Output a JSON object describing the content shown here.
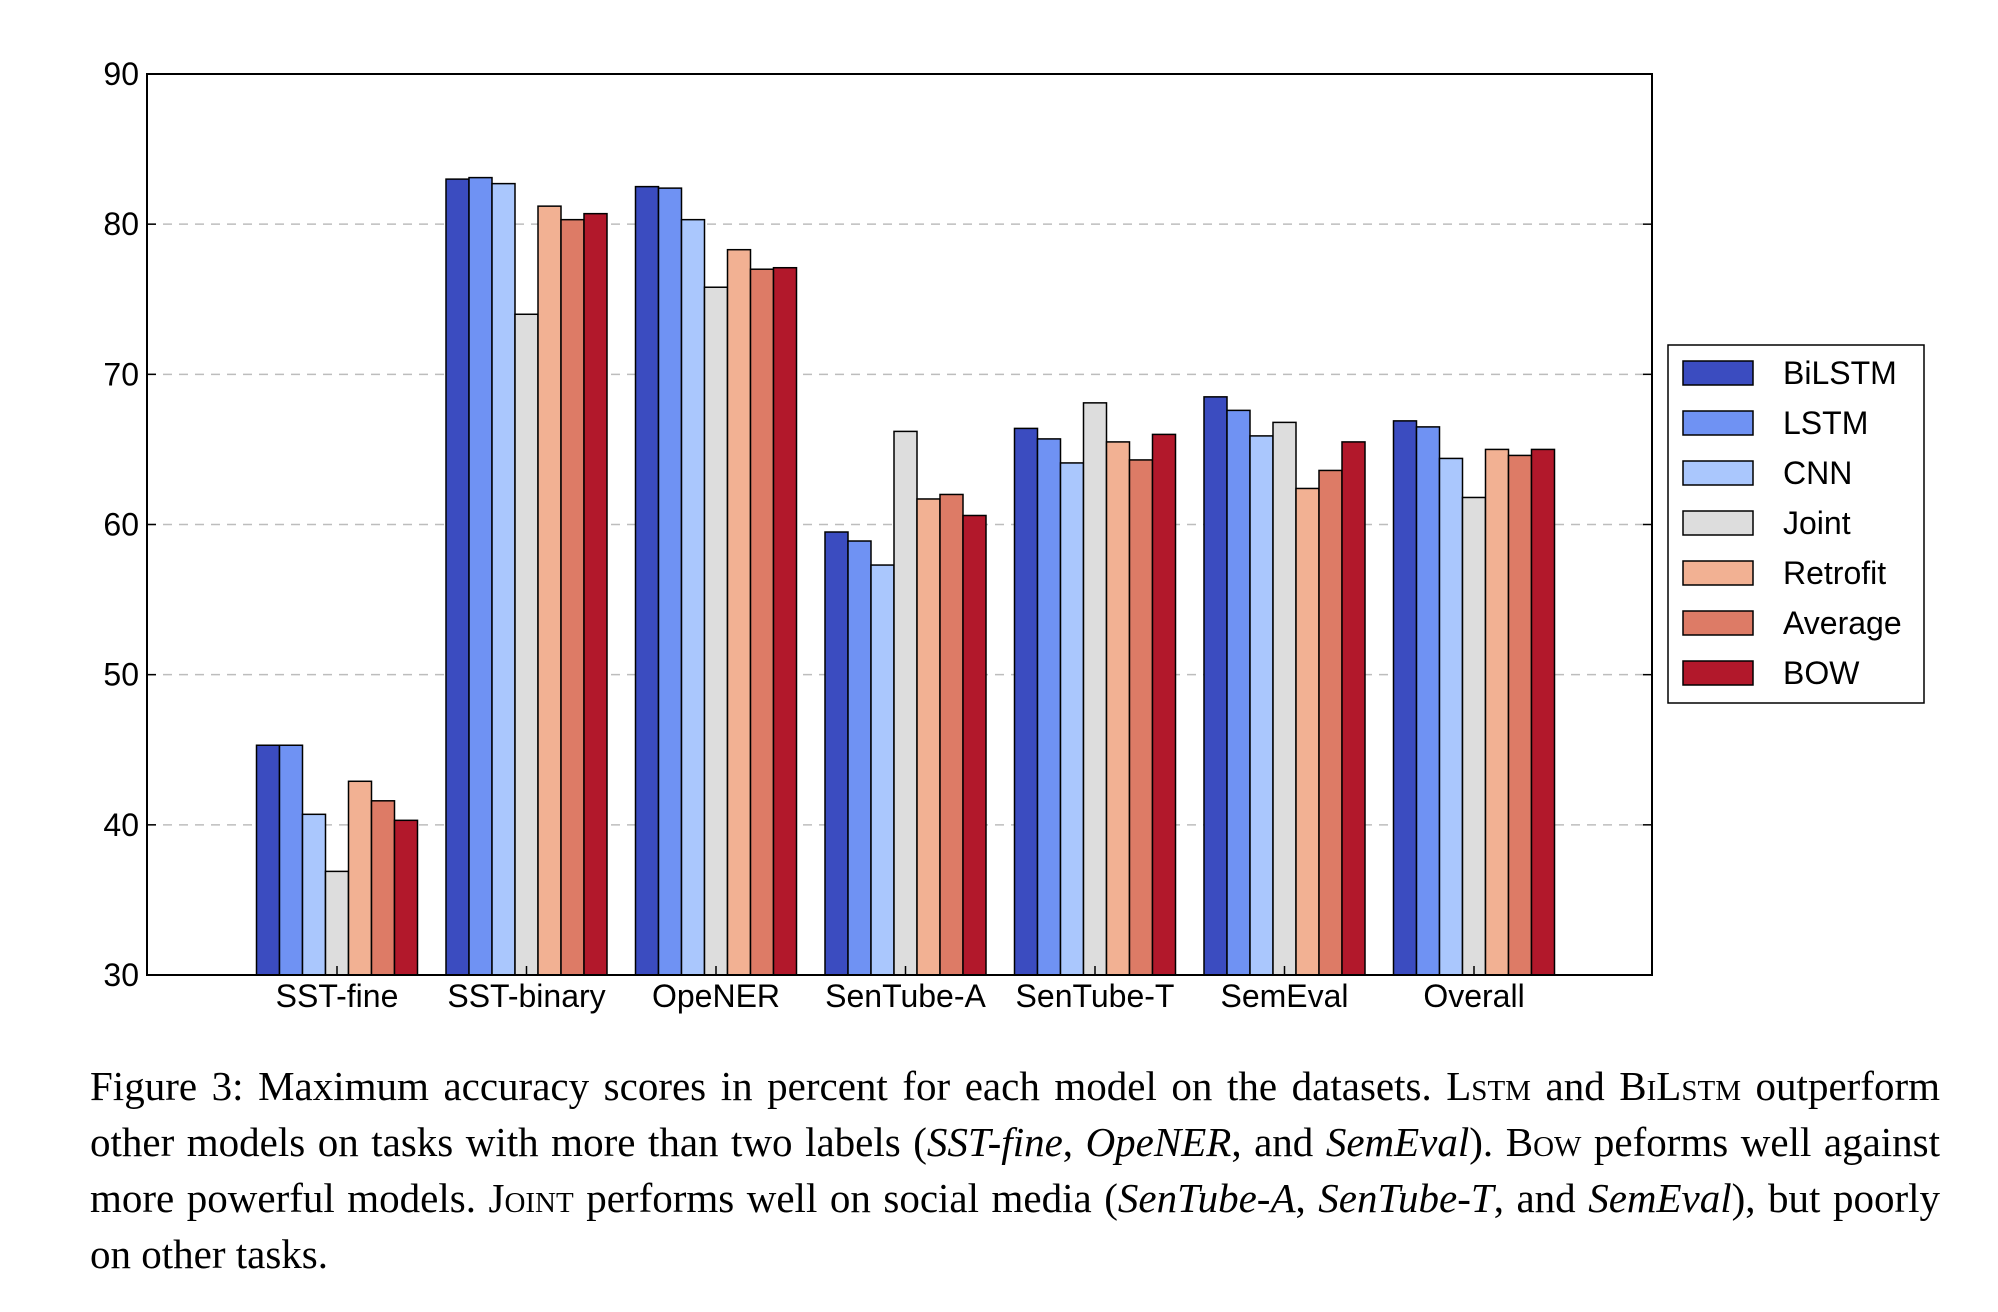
{
  "chart_data": {
    "type": "bar",
    "title": "",
    "xlabel": "",
    "ylabel": "",
    "ylim": [
      30,
      90
    ],
    "yticks": [
      30,
      40,
      50,
      60,
      70,
      80,
      90
    ],
    "grid": "horizontal dashed",
    "legend_position": "right",
    "categories": [
      "SST-fine",
      "SST-binary",
      "OpeNER",
      "SenTube-A",
      "SenTube-T",
      "SemEval",
      "Overall"
    ],
    "series": [
      {
        "name": "BiLSTM",
        "color": "#3b4cc0",
        "values": [
          45.3,
          83.0,
          82.5,
          59.5,
          66.4,
          68.5,
          66.9
        ]
      },
      {
        "name": "LSTM",
        "color": "#6f92f3",
        "values": [
          45.3,
          83.1,
          82.4,
          58.9,
          65.7,
          67.6,
          66.5
        ]
      },
      {
        "name": "CNN",
        "color": "#aac7fd",
        "values": [
          40.7,
          82.7,
          80.3,
          57.3,
          64.1,
          65.9,
          64.4
        ]
      },
      {
        "name": "Joint",
        "color": "#dddddd",
        "values": [
          36.9,
          74.0,
          75.8,
          66.2,
          68.1,
          66.8,
          61.8
        ]
      },
      {
        "name": "Retrofit",
        "color": "#f2b193",
        "values": [
          42.9,
          81.2,
          78.3,
          61.7,
          65.5,
          62.4,
          65.0
        ]
      },
      {
        "name": "Average",
        "color": "#dd7b66",
        "values": [
          41.6,
          80.3,
          77.0,
          62.0,
          64.3,
          63.6,
          64.6
        ]
      },
      {
        "name": "BOW",
        "color": "#b2182b",
        "values": [
          40.3,
          80.7,
          77.1,
          60.6,
          66.0,
          65.5,
          65.0
        ]
      }
    ]
  },
  "caption": {
    "p1": "Figure 3: Maximum accuracy scores in percent for each model on the datasets. ",
    "lstm_a": "Lstm",
    "p2": " and ",
    "bilstm": "BiLstm",
    "p3": " outperform other models on tasks with more than two labels (",
    "d1": "SST-fine",
    "p4": ", ",
    "d2": "OpeNER",
    "p5": ", and ",
    "d3": "SemEval",
    "p6": "). ",
    "bow": "Bow",
    "p7": " peforms well against more powerful models. ",
    "joint": "Joint",
    "p8": " performs well on social media (",
    "d4": "SenTube-A",
    "p9": ", ",
    "d5": "SenTube-T",
    "p10": ", and ",
    "d6": "SemEval",
    "p11": "), but poorly on other tasks."
  }
}
